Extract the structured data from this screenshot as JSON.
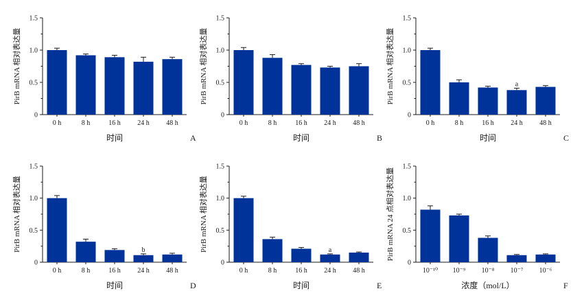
{
  "figure": {
    "bar_color": "#003399",
    "axis_color": "#1a1a1a"
  },
  "chart_data": [
    {
      "panel": "A",
      "type": "bar",
      "categories": [
        "0 h",
        "8 h",
        "16 h",
        "24 h",
        "48 h"
      ],
      "values": [
        1.0,
        0.92,
        0.89,
        0.82,
        0.86
      ],
      "errors": [
        0.03,
        0.02,
        0.03,
        0.07,
        0.03
      ],
      "annotations": [
        "",
        "",
        "",
        "",
        ""
      ],
      "xlabel": "时间",
      "ylabel": "PirB mRNA 相对表达量",
      "ylim": [
        0,
        1.5
      ],
      "yticks": [
        "0",
        "0.5",
        "1.0",
        "1.5"
      ]
    },
    {
      "panel": "B",
      "type": "bar",
      "categories": [
        "0 h",
        "8 h",
        "16 h",
        "24 h",
        "48 h"
      ],
      "values": [
        1.0,
        0.88,
        0.77,
        0.73,
        0.75
      ],
      "errors": [
        0.04,
        0.05,
        0.02,
        0.02,
        0.04
      ],
      "annotations": [
        "",
        "",
        "",
        "",
        ""
      ],
      "xlabel": "时间",
      "ylabel": "PirB mRNA 相对表达量",
      "ylim": [
        0,
        1.5
      ],
      "yticks": [
        "0",
        "0.5",
        "1.0",
        "1.5"
      ]
    },
    {
      "panel": "C",
      "type": "bar",
      "categories": [
        "0 h",
        "8 h",
        "16 h",
        "24 h",
        "48 h"
      ],
      "values": [
        1.0,
        0.5,
        0.42,
        0.38,
        0.43
      ],
      "errors": [
        0.03,
        0.04,
        0.02,
        0.03,
        0.02
      ],
      "annotations": [
        "",
        "",
        "",
        "a",
        ""
      ],
      "xlabel": "时间",
      "ylabel": "PirB mRNA 相对表达量",
      "ylim": [
        0,
        1.5
      ],
      "yticks": [
        "0",
        "0.5",
        "1.0",
        "1.5"
      ]
    },
    {
      "panel": "D",
      "type": "bar",
      "categories": [
        "0 h",
        "8 h",
        "16 h",
        "24 h",
        "48 h"
      ],
      "values": [
        1.0,
        0.32,
        0.19,
        0.11,
        0.12
      ],
      "errors": [
        0.04,
        0.04,
        0.02,
        0.02,
        0.02
      ],
      "annotations": [
        "",
        "",
        "",
        "b",
        ""
      ],
      "xlabel": "时间",
      "ylabel": "PirB mRNA 相对表达量",
      "ylim": [
        0,
        1.5
      ],
      "yticks": [
        "0",
        "0.5",
        "1.0",
        "1.5"
      ]
    },
    {
      "panel": "E",
      "type": "bar",
      "categories": [
        "0 h",
        "8 h",
        "16 h",
        "24 h",
        "48 h"
      ],
      "values": [
        1.0,
        0.36,
        0.21,
        0.12,
        0.15
      ],
      "errors": [
        0.03,
        0.03,
        0.02,
        0.01,
        0.01
      ],
      "annotations": [
        "",
        "",
        "",
        "a",
        ""
      ],
      "xlabel": "时间",
      "ylabel": "PirB mRNA 相对表达量",
      "ylim": [
        0,
        1.5
      ],
      "yticks": [
        "0",
        "0.5",
        "1.0",
        "1.5"
      ]
    },
    {
      "panel": "F",
      "type": "bar",
      "categories": [
        "10⁻¹⁰",
        "10⁻⁹",
        "10⁻⁸",
        "10⁻⁷",
        "10⁻⁶"
      ],
      "values": [
        0.82,
        0.73,
        0.38,
        0.11,
        0.12
      ],
      "errors": [
        0.06,
        0.02,
        0.03,
        0.01,
        0.01
      ],
      "annotations": [
        "",
        "",
        "",
        "",
        ""
      ],
      "xlabel": "浓度（mol/L）",
      "ylabel": "PirB mRNA 24 点相对表达量",
      "ylim": [
        0,
        1.5
      ],
      "yticks": [
        "0",
        "0.5",
        "1.0",
        "1.5"
      ]
    }
  ]
}
